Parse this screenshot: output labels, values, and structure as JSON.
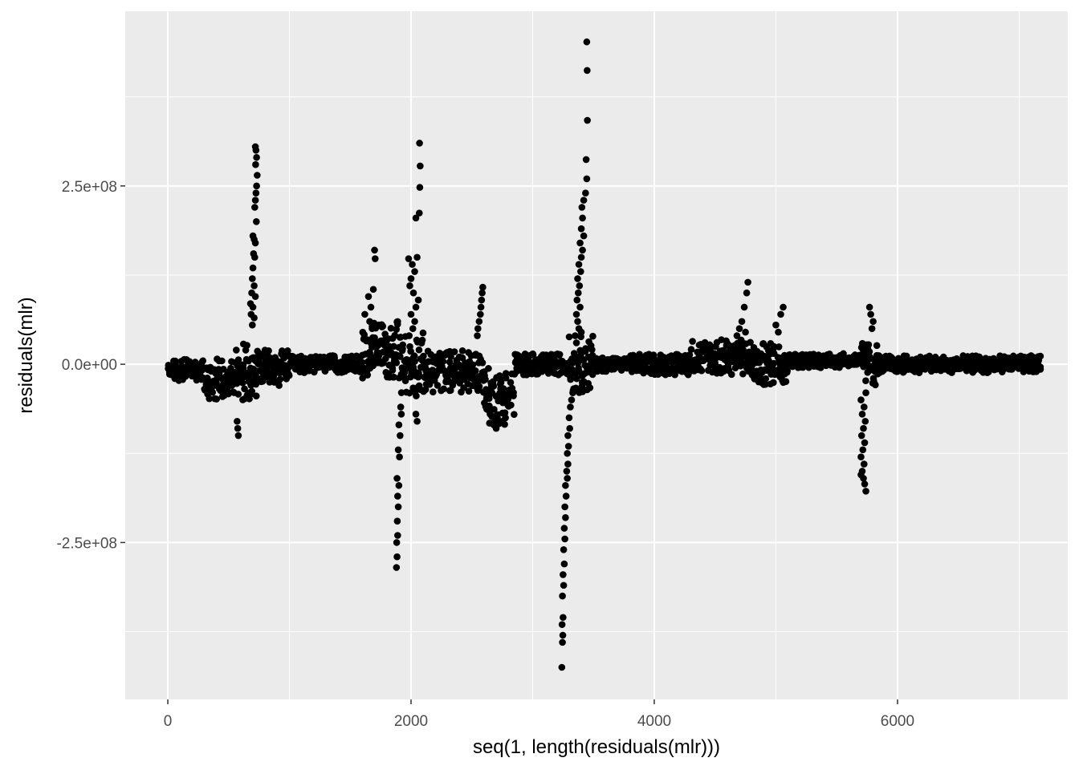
{
  "chart_data": {
    "type": "scatter",
    "title": "",
    "xlabel": "seq(1, length(residuals(mlr)))",
    "ylabel": "residuals(mlr)",
    "xlim": [
      -350,
      7400
    ],
    "ylim": [
      -470000000,
      495000000
    ],
    "x_ticks": [
      {
        "value": 0,
        "label": "0"
      },
      {
        "value": 2000,
        "label": "2000"
      },
      {
        "value": 4000,
        "label": "4000"
      },
      {
        "value": 6000,
        "label": "6000"
      }
    ],
    "x_minor": [
      1000,
      3000,
      5000,
      7000
    ],
    "y_ticks": [
      {
        "value": 250000000,
        "label": "2.5e+08"
      },
      {
        "value": 0,
        "label": "0.0e+00"
      },
      {
        "value": -250000000,
        "label": "-2.5e+08"
      }
    ],
    "y_minor": [
      375000000,
      125000000,
      -125000000,
      -375000000
    ],
    "grid": true,
    "legend": "none",
    "colors": {
      "panel": "#ebebeb",
      "grid": "#ffffff",
      "point": "#000000"
    },
    "baseline_segments": [
      {
        "x": [
          0,
          300
        ],
        "center": -8000000,
        "spread": 15000000
      },
      {
        "x": [
          300,
          560
        ],
        "center": -20000000,
        "spread": 30000000
      },
      {
        "x": [
          560,
          740
        ],
        "center": -10000000,
        "spread": 40000000
      },
      {
        "x": [
          740,
          1000
        ],
        "center": -5000000,
        "spread": 25000000
      },
      {
        "x": [
          1000,
          1600
        ],
        "center": 0,
        "spread": 12000000
      },
      {
        "x": [
          1600,
          1900
        ],
        "center": 20000000,
        "spread": 40000000
      },
      {
        "x": [
          1900,
          2100
        ],
        "center": 0,
        "spread": 45000000
      },
      {
        "x": [
          2100,
          2600
        ],
        "center": -10000000,
        "spread": 30000000
      },
      {
        "x": [
          2600,
          2850
        ],
        "center": -45000000,
        "spread": 40000000
      },
      {
        "x": [
          2850,
          3300
        ],
        "center": 0,
        "spread": 15000000
      },
      {
        "x": [
          3300,
          3500
        ],
        "center": 0,
        "spread": 40000000
      },
      {
        "x": [
          3500,
          3800
        ],
        "center": 0,
        "spread": 10000000
      },
      {
        "x": [
          3800,
          4300
        ],
        "center": 0,
        "spread": 15000000
      },
      {
        "x": [
          4300,
          4800
        ],
        "center": 10000000,
        "spread": 25000000
      },
      {
        "x": [
          4800,
          5100
        ],
        "center": 0,
        "spread": 30000000
      },
      {
        "x": [
          5100,
          5700
        ],
        "center": 5000000,
        "spread": 10000000
      },
      {
        "x": [
          5700,
          5850
        ],
        "center": 0,
        "spread": 30000000
      },
      {
        "x": [
          5850,
          7180
        ],
        "center": 0,
        "spread": 12000000
      }
    ],
    "spike_points": [
      [
        720,
        305000000
      ],
      [
        725,
        300000000
      ],
      [
        730,
        290000000
      ],
      [
        722,
        280000000
      ],
      [
        735,
        265000000
      ],
      [
        730,
        250000000
      ],
      [
        725,
        240000000
      ],
      [
        720,
        230000000
      ],
      [
        715,
        220000000
      ],
      [
        728,
        200000000
      ],
      [
        700,
        180000000
      ],
      [
        710,
        175000000
      ],
      [
        720,
        170000000
      ],
      [
        705,
        155000000
      ],
      [
        715,
        150000000
      ],
      [
        700,
        135000000
      ],
      [
        695,
        120000000
      ],
      [
        710,
        110000000
      ],
      [
        690,
        100000000
      ],
      [
        720,
        95000000
      ],
      [
        680,
        85000000
      ],
      [
        700,
        80000000
      ],
      [
        685,
        70000000
      ],
      [
        710,
        65000000
      ],
      [
        695,
        55000000
      ],
      [
        570,
        -80000000
      ],
      [
        575,
        -90000000
      ],
      [
        580,
        -100000000
      ],
      [
        1700,
        160000000
      ],
      [
        1705,
        148000000
      ],
      [
        1690,
        105000000
      ],
      [
        1650,
        95000000
      ],
      [
        1670,
        80000000
      ],
      [
        1620,
        70000000
      ],
      [
        1660,
        60000000
      ],
      [
        1680,
        50000000
      ],
      [
        2070,
        310000000
      ],
      [
        2075,
        278000000
      ],
      [
        2072,
        248000000
      ],
      [
        2068,
        212000000
      ],
      [
        2040,
        205000000
      ],
      [
        2050,
        150000000
      ],
      [
        1980,
        148000000
      ],
      [
        2010,
        140000000
      ],
      [
        2030,
        130000000
      ],
      [
        2000,
        120000000
      ],
      [
        1990,
        110000000
      ],
      [
        2020,
        100000000
      ],
      [
        2060,
        90000000
      ],
      [
        2040,
        80000000
      ],
      [
        2000,
        70000000
      ],
      [
        2030,
        60000000
      ],
      [
        2015,
        50000000
      ],
      [
        1985,
        40000000
      ],
      [
        1880,
        -285000000
      ],
      [
        1885,
        -270000000
      ],
      [
        1882,
        -250000000
      ],
      [
        1890,
        -240000000
      ],
      [
        1887,
        -220000000
      ],
      [
        1895,
        -200000000
      ],
      [
        1890,
        -185000000
      ],
      [
        1900,
        -170000000
      ],
      [
        1885,
        -160000000
      ],
      [
        1905,
        -130000000
      ],
      [
        1895,
        -120000000
      ],
      [
        1910,
        -100000000
      ],
      [
        1900,
        -85000000
      ],
      [
        1920,
        -70000000
      ],
      [
        1915,
        -60000000
      ],
      [
        2050,
        -80000000
      ],
      [
        2040,
        -70000000
      ],
      [
        2590,
        108000000
      ],
      [
        2585,
        100000000
      ],
      [
        2580,
        90000000
      ],
      [
        2575,
        80000000
      ],
      [
        2570,
        70000000
      ],
      [
        2560,
        60000000
      ],
      [
        2550,
        50000000
      ],
      [
        2545,
        40000000
      ],
      [
        2700,
        -90000000
      ],
      [
        2680,
        -85000000
      ],
      [
        2750,
        -80000000
      ],
      [
        2710,
        -75000000
      ],
      [
        2650,
        -70000000
      ],
      [
        3445,
        452000000
      ],
      [
        3448,
        412000000
      ],
      [
        3450,
        342000000
      ],
      [
        3440,
        287000000
      ],
      [
        3445,
        260000000
      ],
      [
        3435,
        240000000
      ],
      [
        3420,
        230000000
      ],
      [
        3405,
        220000000
      ],
      [
        3410,
        205000000
      ],
      [
        3400,
        190000000
      ],
      [
        3420,
        180000000
      ],
      [
        3390,
        170000000
      ],
      [
        3410,
        160000000
      ],
      [
        3400,
        150000000
      ],
      [
        3380,
        140000000
      ],
      [
        3395,
        130000000
      ],
      [
        3370,
        120000000
      ],
      [
        3385,
        110000000
      ],
      [
        3375,
        100000000
      ],
      [
        3365,
        90000000
      ],
      [
        3390,
        80000000
      ],
      [
        3360,
        70000000
      ],
      [
        3370,
        60000000
      ],
      [
        3380,
        50000000
      ],
      [
        3400,
        45000000
      ],
      [
        3350,
        40000000
      ],
      [
        3360,
        30000000
      ],
      [
        3240,
        -425000000
      ],
      [
        3245,
        -390000000
      ],
      [
        3248,
        -380000000
      ],
      [
        3242,
        -365000000
      ],
      [
        3250,
        -355000000
      ],
      [
        3245,
        -325000000
      ],
      [
        3255,
        -310000000
      ],
      [
        3250,
        -295000000
      ],
      [
        3260,
        -280000000
      ],
      [
        3255,
        -260000000
      ],
      [
        3265,
        -245000000
      ],
      [
        3260,
        -230000000
      ],
      [
        3270,
        -215000000
      ],
      [
        3265,
        -200000000
      ],
      [
        3275,
        -185000000
      ],
      [
        3270,
        -170000000
      ],
      [
        3285,
        -160000000
      ],
      [
        3280,
        -150000000
      ],
      [
        3290,
        -140000000
      ],
      [
        3285,
        -125000000
      ],
      [
        3295,
        -115000000
      ],
      [
        3290,
        -100000000
      ],
      [
        3305,
        -90000000
      ],
      [
        3300,
        -75000000
      ],
      [
        3310,
        -60000000
      ],
      [
        3320,
        -50000000
      ],
      [
        3330,
        -40000000
      ],
      [
        4770,
        115000000
      ],
      [
        4760,
        100000000
      ],
      [
        4740,
        80000000
      ],
      [
        4720,
        60000000
      ],
      [
        4700,
        50000000
      ],
      [
        4750,
        45000000
      ],
      [
        4680,
        40000000
      ],
      [
        5060,
        80000000
      ],
      [
        5040,
        70000000
      ],
      [
        5000,
        55000000
      ],
      [
        5020,
        45000000
      ],
      [
        5770,
        80000000
      ],
      [
        5780,
        70000000
      ],
      [
        5800,
        60000000
      ],
      [
        5790,
        50000000
      ],
      [
        5740,
        -178000000
      ],
      [
        5730,
        -168000000
      ],
      [
        5720,
        -160000000
      ],
      [
        5700,
        -155000000
      ],
      [
        5710,
        -150000000
      ],
      [
        5725,
        -140000000
      ],
      [
        5700,
        -130000000
      ],
      [
        5715,
        -120000000
      ],
      [
        5730,
        -110000000
      ],
      [
        5705,
        -100000000
      ],
      [
        5720,
        -90000000
      ],
      [
        5735,
        -80000000
      ],
      [
        5710,
        -70000000
      ],
      [
        5725,
        -60000000
      ],
      [
        5700,
        -50000000
      ],
      [
        5740,
        -40000000
      ]
    ]
  }
}
